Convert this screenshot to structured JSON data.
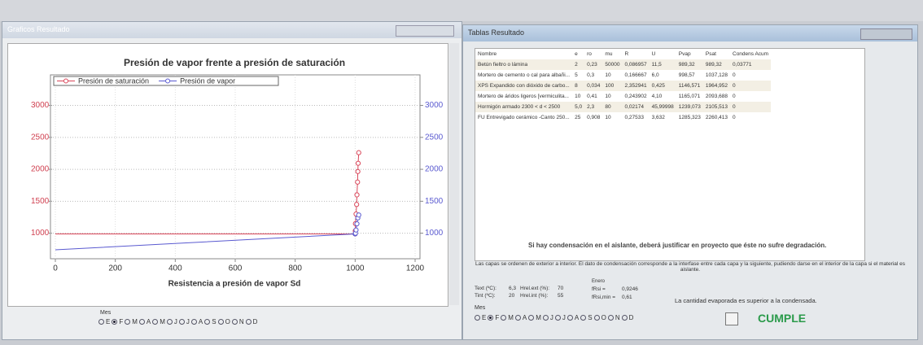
{
  "left_window": {
    "title": "Graficos Resultado",
    "month_label": "Mes",
    "selected_month": 1
  },
  "months": [
    "E",
    "F",
    "M",
    "A",
    "M",
    "J",
    "J",
    "A",
    "S",
    "O",
    "N",
    "D"
  ],
  "chart_data": {
    "type": "line",
    "title": "Presión de vapor frente a presión de saturación",
    "x_label": "Resistencia a presión de vapor Sd",
    "xlim": [
      0,
      1200
    ],
    "xticks": [
      0,
      200,
      400,
      600,
      800,
      1000,
      1200
    ],
    "ylim": [
      600,
      3300
    ],
    "yticks": [
      1000,
      1500,
      2000,
      2500,
      3000
    ],
    "y2lim": [
      600,
      3300
    ],
    "y2ticks": [
      1000,
      1500,
      2000,
      2500,
      3000
    ],
    "grid": true,
    "legend": "top-left",
    "series": [
      {
        "name": "Presión de saturación",
        "color": "#d9475a",
        "x": [
          0,
          1000,
          1000.5,
          1001,
          1003,
          1005,
          1006,
          1008,
          1009,
          1010,
          1012
        ],
        "values": [
          989,
          989,
          1037,
          1150,
          1300,
          1450,
          1600,
          1800,
          1965,
          2094,
          2260
        ]
      },
      {
        "name": "Presión de vapor",
        "color": "#5a5ad0",
        "x": [
          0,
          1000,
          1001,
          1003,
          1006,
          1009,
          1012
        ],
        "values": [
          740,
          989,
          999,
          1050,
          1147,
          1239,
          1285
        ]
      }
    ]
  },
  "right_window": {
    "title": "Tablas Resultado",
    "table": {
      "header": [
        "Nombre",
        "e",
        "ro",
        "mu",
        "R",
        "U",
        "Pvap",
        "Psat",
        "Condens Acum"
      ],
      "rows": [
        [
          "Betún fieltro o lámina",
          "2",
          "0,23",
          "50000",
          "0,086957",
          "11,5",
          "989,32",
          "989,32",
          "0,03771"
        ],
        [
          "Mortero de cemento o cal para albañi...",
          "5",
          "0,3",
          "10",
          "0,166667",
          "6,0",
          "998,57",
          "1037,128",
          "0"
        ],
        [
          "XPS Expandido con dióxido de carbo...",
          "8",
          "0,034",
          "100",
          "2,352941",
          "0,425",
          "1146,571",
          "1964,952",
          "0"
        ],
        [
          "Mortero de áridos ligeros [vermiculita...",
          "10",
          "0,41",
          "10",
          "0,243902",
          "4,10",
          "1165,071",
          "2093,688",
          "0"
        ],
        [
          "Hormigón armado 2300 < d < 2500",
          "5,0",
          "2,3",
          "80",
          "0,02174",
          "45,99998",
          "1239,073",
          "2105,513",
          "0"
        ],
        [
          "FU Entrevigado cerámico -Canto 250...",
          "25",
          "0,908",
          "10",
          "0,27533",
          "3,632",
          "1285,323",
          "2260,413",
          "0"
        ]
      ]
    },
    "warning": "Si hay condensación en el aislante, deberá justificar en proyecto que éste no sufre degradación.",
    "note": "Las capas se ordenen de exterior a interior. El dato de condensación corresponde a la interfase entre cada capa y la siguiente, pudiendo darse en el interior de la capa si el material es aislante.",
    "fields": [
      {
        "label": "Text (ºC):",
        "value": "6,3"
      },
      {
        "label": "Hrel.ext (%):",
        "value": "70"
      },
      {
        "label": "Tint (ºC):",
        "value": "20"
      },
      {
        "label": "Hrel.int (%):",
        "value": "55"
      }
    ],
    "month_heading": "Enero",
    "frsi": {
      "label": "fRsi =",
      "value": "0,9246"
    },
    "frsi_min": {
      "label": "fRsi,min =",
      "value": "0,61"
    },
    "evaporation_note": "La cantidad evaporada es superior a la condensada.",
    "verdict": "CUMPLE",
    "month_label": "Mes",
    "selected_month": 1
  }
}
